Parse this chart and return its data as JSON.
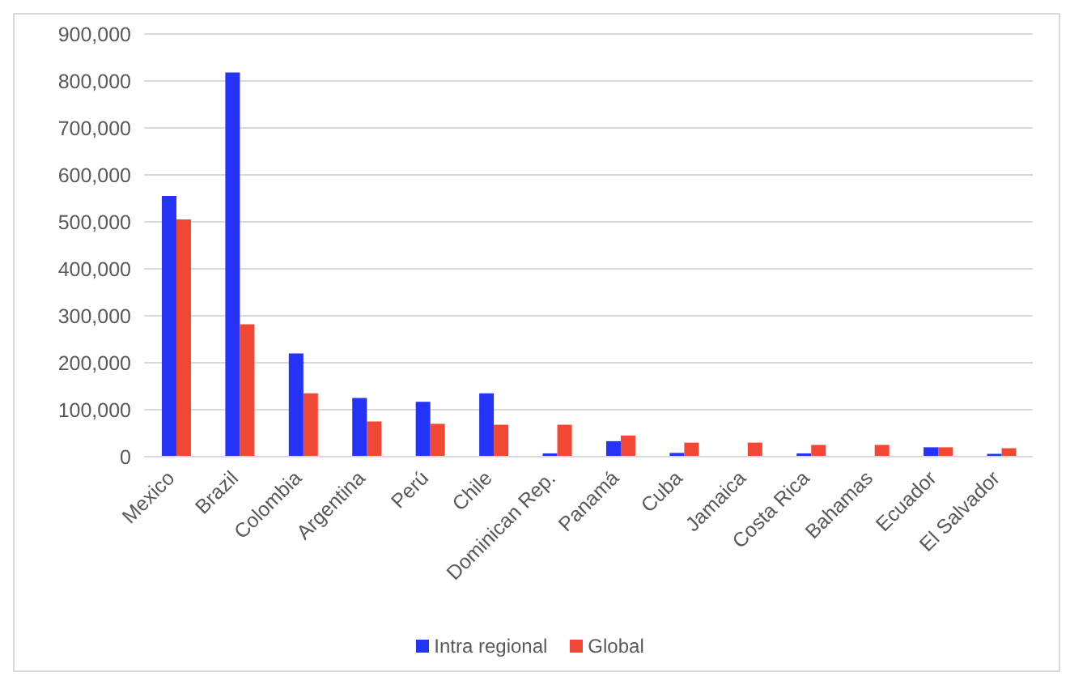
{
  "chart_data": {
    "type": "bar",
    "categories": [
      "Mexico",
      "Brazil",
      "Colombia",
      "Argentina",
      "Perú",
      "Chile",
      "Dominican Rep.",
      "Panamá",
      "Cuba",
      "Jamaica",
      "Costa Rica",
      "Bahamas",
      "Ecuador",
      "El Salvador"
    ],
    "series": [
      {
        "name": "Intra regional",
        "color": "#2433f5",
        "values": [
          555000,
          818000,
          220000,
          125000,
          117000,
          135000,
          7000,
          33000,
          8000,
          null,
          7000,
          null,
          20000,
          6000
        ]
      },
      {
        "name": "Global",
        "color": "#f04835",
        "values": [
          505000,
          282000,
          135000,
          75000,
          70000,
          68000,
          68000,
          45000,
          30000,
          30000,
          25000,
          25000,
          20000,
          18000
        ]
      }
    ],
    "ylim": [
      0,
      900000
    ],
    "yticks": [
      0,
      {
        "value": 100000,
        "label": "100,000"
      },
      {
        "value": 200000,
        "label": "200,000"
      },
      {
        "value": 300000,
        "label": "300,000"
      },
      {
        "value": 400000,
        "label": "400,000"
      },
      {
        "value": 500000,
        "label": "500,000"
      },
      {
        "value": 600000,
        "label": "600,000"
      },
      {
        "value": 700000,
        "label": "700,000"
      },
      {
        "value": 800000,
        "label": "800,000"
      },
      {
        "value": 900000,
        "label": "900,000"
      }
    ],
    "grid": "y",
    "legend": "bottom"
  }
}
